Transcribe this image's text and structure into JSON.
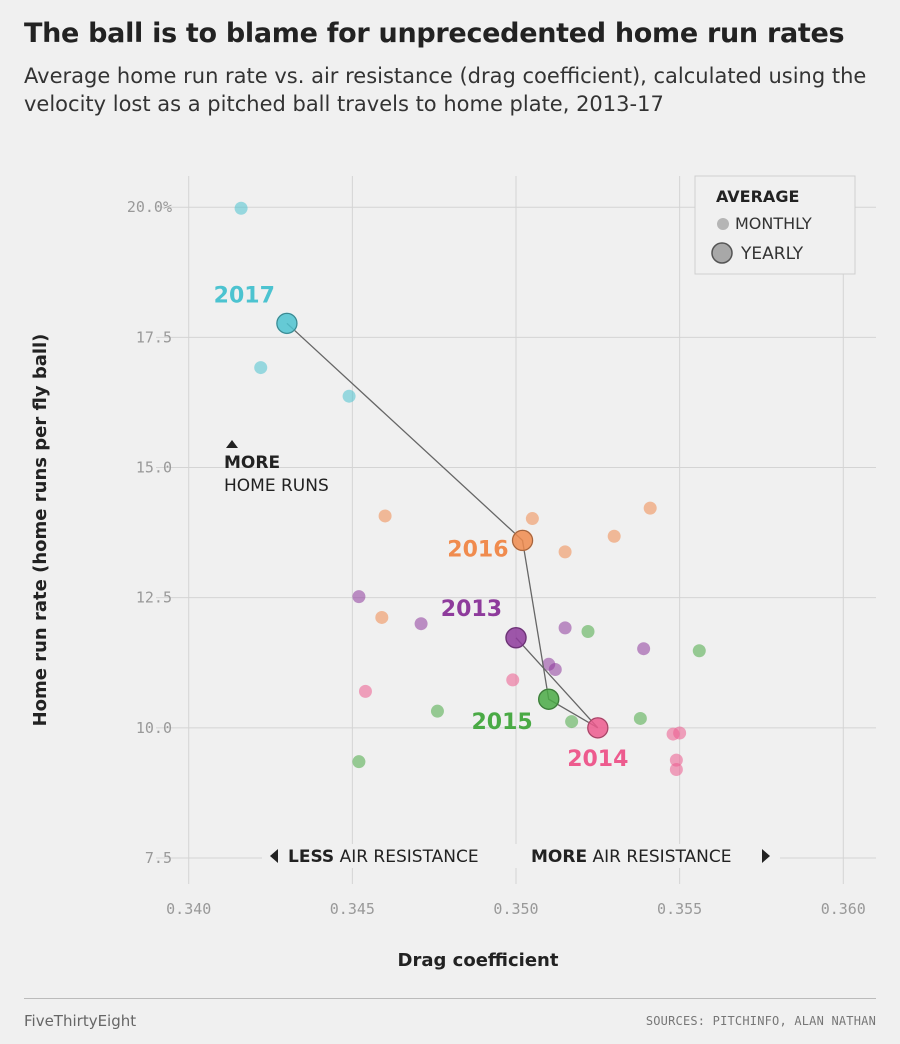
{
  "header": {
    "title": "The ball is to blame for unprecedented home run rates",
    "subtitle": "Average home run rate vs. air resistance (drag coefficient), calculated using the velocity lost as a pitched ball travels to home plate, 2013-17"
  },
  "footer": {
    "brand": "FiveThirtyEight",
    "sources": "SOURCES: PITCHINFO, ALAN NATHAN"
  },
  "legend": {
    "title": "AVERAGE",
    "monthly": "MONTHLY",
    "yearly": "YEARLY"
  },
  "annotations": {
    "more_hr_bold": "MORE",
    "more_hr_rest": "HOME RUNS",
    "less_bold": "LESS",
    "less_rest": " AIR RESISTANCE",
    "more_bold": "MORE",
    "more_rest": " AIR RESISTANCE"
  },
  "chart_data": {
    "type": "scatter",
    "title": "The ball is to blame for unprecedented home run rates",
    "subtitle": "Average home run rate vs. air resistance (drag coefficient), calculated using the velocity lost as a pitched ball travels to home plate, 2013-17",
    "xlabel": "Drag coefficient",
    "ylabel": "Home run rate (home runs per fly ball)",
    "xlim": [
      0.339,
      0.361
    ],
    "ylim": [
      7.0,
      20.6
    ],
    "xticks": [
      0.34,
      0.345,
      0.35,
      0.355,
      0.36
    ],
    "xtick_labels": [
      "0.340",
      "0.345",
      "0.350",
      "0.355",
      "0.360"
    ],
    "yticks": [
      7.5,
      10.0,
      12.5,
      15.0,
      17.5,
      20.0
    ],
    "ytick_labels": [
      "7.5",
      "10.0",
      "12.5",
      "15.0",
      "17.5",
      "20.0%"
    ],
    "grid": true,
    "legend_position": "top-right",
    "series": [
      {
        "name": "2013",
        "color": "#8e3b9c",
        "monthly": [
          [
            0.3452,
            12.52
          ],
          [
            0.3471,
            12.0
          ],
          [
            0.3515,
            11.92
          ],
          [
            0.351,
            11.22
          ],
          [
            0.3512,
            11.12
          ],
          [
            0.3539,
            11.52
          ]
        ],
        "yearly": [
          0.35,
          11.73
        ]
      },
      {
        "name": "2014",
        "color": "#ed5b8e",
        "monthly": [
          [
            0.3454,
            10.7
          ],
          [
            0.3499,
            10.92
          ],
          [
            0.3548,
            9.88
          ],
          [
            0.355,
            9.9
          ],
          [
            0.3549,
            9.38
          ],
          [
            0.3549,
            9.2
          ]
        ],
        "yearly": [
          0.3525,
          10.0
        ]
      },
      {
        "name": "2015",
        "color": "#4aaa45",
        "monthly": [
          [
            0.3452,
            9.35
          ],
          [
            0.3476,
            10.32
          ],
          [
            0.3517,
            10.12
          ],
          [
            0.3522,
            11.85
          ],
          [
            0.3538,
            10.18
          ],
          [
            0.3556,
            11.48
          ]
        ],
        "yearly": [
          0.351,
          10.55
        ]
      },
      {
        "name": "2016",
        "color": "#f08b4e",
        "monthly": [
          [
            0.346,
            14.07
          ],
          [
            0.3459,
            12.12
          ],
          [
            0.3505,
            14.02
          ],
          [
            0.3515,
            13.38
          ],
          [
            0.353,
            13.68
          ],
          [
            0.3541,
            14.22
          ]
        ],
        "yearly": [
          0.3502,
          13.6
        ]
      },
      {
        "name": "2017",
        "color": "#4cc3d0",
        "monthly": [
          [
            0.3416,
            19.98
          ],
          [
            0.3422,
            16.92
          ],
          [
            0.3449,
            16.37
          ]
        ],
        "yearly": [
          0.343,
          17.77
        ]
      }
    ],
    "yearly_path_order": [
      "2013",
      "2014",
      "2015",
      "2016",
      "2017"
    ]
  }
}
